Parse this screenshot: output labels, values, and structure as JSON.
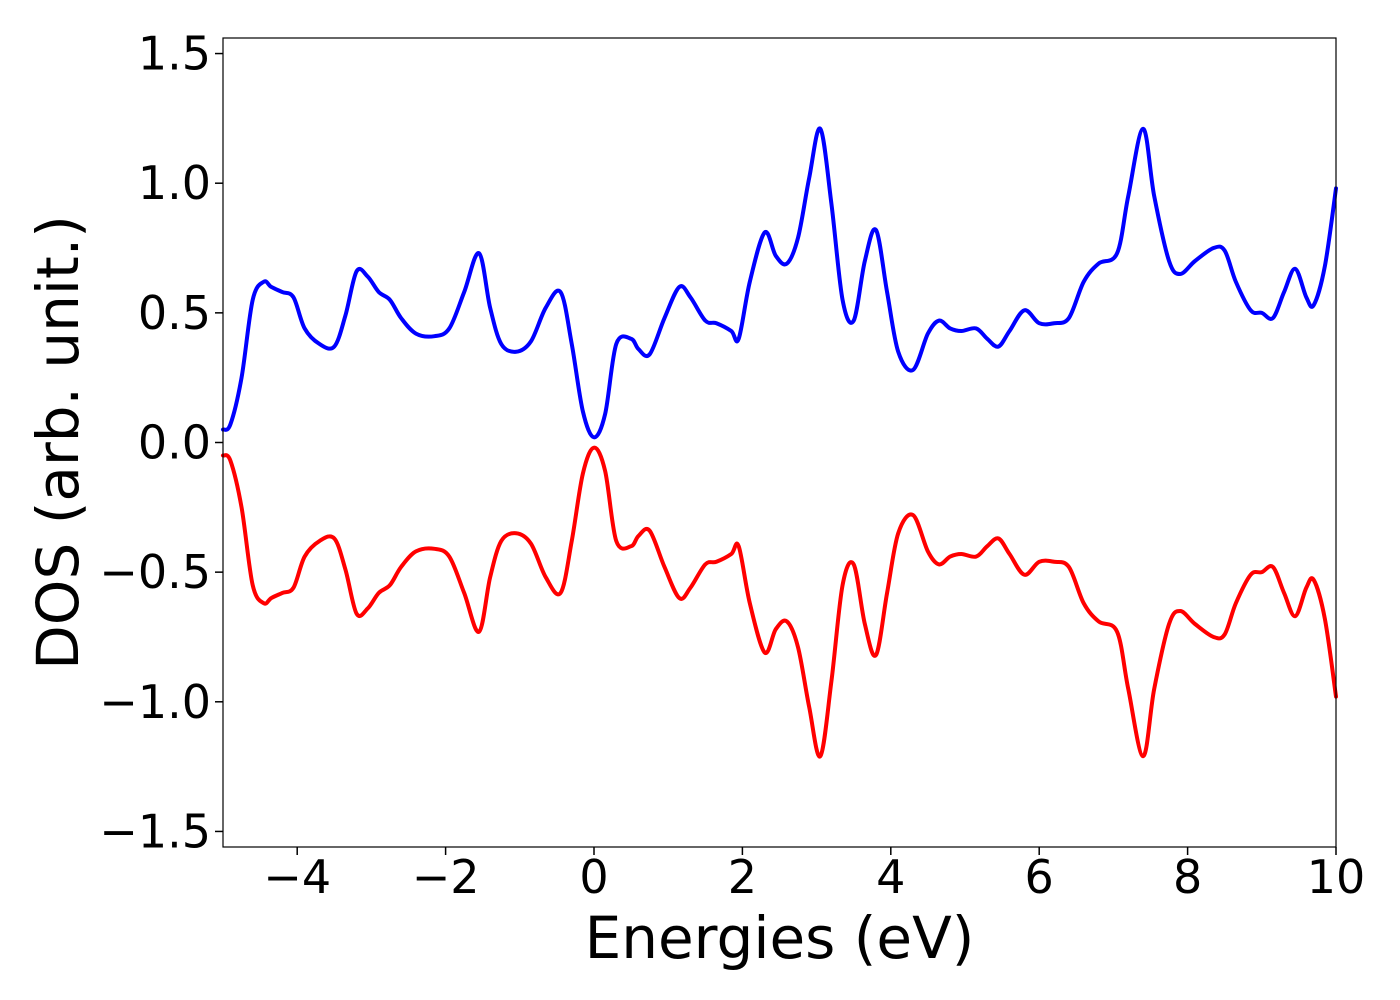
{
  "chart_data": {
    "type": "line",
    "title": "",
    "xlabel": "Energies (eV)",
    "ylabel": "DOS (arb. unit.)",
    "xlim": [
      -5,
      10
    ],
    "ylim": [
      -1.56,
      1.56
    ],
    "grid": false,
    "xticks": [
      -4,
      -2,
      0,
      2,
      4,
      6,
      8,
      10
    ],
    "xtick_labels": [
      "−4",
      "−2",
      "0",
      "2",
      "4",
      "6",
      "8",
      "10"
    ],
    "yticks": [
      1.5,
      1.0,
      0.5,
      0.0,
      -0.5,
      -1.0,
      -1.5
    ],
    "ytick_labels": [
      "1.5",
      "1.0",
      "0.5",
      "0.0",
      "−0.5",
      "−1.0",
      "−1.5"
    ],
    "series": [
      {
        "color": "#0000ff",
        "x": [
          -5.0,
          -4.9,
          -4.75,
          -4.6,
          -4.45,
          -4.35,
          -4.2,
          -4.05,
          -3.9,
          -3.7,
          -3.5,
          -3.35,
          -3.2,
          -3.05,
          -2.9,
          -2.75,
          -2.6,
          -2.4,
          -2.15,
          -1.95,
          -1.75,
          -1.55,
          -1.4,
          -1.25,
          -1.05,
          -0.85,
          -0.65,
          -0.45,
          -0.3,
          -0.15,
          0.0,
          0.15,
          0.3,
          0.5,
          0.6,
          0.75,
          0.95,
          1.15,
          1.3,
          1.5,
          1.65,
          1.85,
          1.95,
          2.1,
          2.3,
          2.45,
          2.6,
          2.75,
          2.9,
          3.05,
          3.2,
          3.35,
          3.5,
          3.65,
          3.8,
          3.95,
          4.1,
          4.3,
          4.5,
          4.65,
          4.8,
          4.95,
          5.15,
          5.3,
          5.45,
          5.6,
          5.8,
          6.0,
          6.2,
          6.4,
          6.6,
          6.8,
          7.05,
          7.2,
          7.4,
          7.55,
          7.75,
          7.9,
          8.1,
          8.35,
          8.5,
          8.65,
          8.85,
          9.0,
          9.15,
          9.3,
          9.45,
          9.6,
          9.7,
          9.85,
          10.0
        ],
        "y": [
          0.05,
          0.07,
          0.25,
          0.55,
          0.62,
          0.6,
          0.58,
          0.56,
          0.44,
          0.38,
          0.37,
          0.49,
          0.66,
          0.64,
          0.58,
          0.55,
          0.48,
          0.42,
          0.41,
          0.44,
          0.58,
          0.73,
          0.52,
          0.38,
          0.35,
          0.39,
          0.52,
          0.58,
          0.38,
          0.12,
          0.02,
          0.11,
          0.38,
          0.4,
          0.36,
          0.34,
          0.48,
          0.6,
          0.56,
          0.47,
          0.46,
          0.43,
          0.4,
          0.62,
          0.81,
          0.72,
          0.69,
          0.79,
          1.02,
          1.21,
          0.92,
          0.55,
          0.47,
          0.7,
          0.82,
          0.58,
          0.35,
          0.28,
          0.42,
          0.47,
          0.44,
          0.43,
          0.44,
          0.4,
          0.37,
          0.43,
          0.51,
          0.46,
          0.46,
          0.48,
          0.62,
          0.69,
          0.73,
          0.95,
          1.21,
          0.95,
          0.7,
          0.65,
          0.7,
          0.75,
          0.74,
          0.62,
          0.51,
          0.5,
          0.48,
          0.58,
          0.67,
          0.56,
          0.53,
          0.68,
          0.98
        ]
      },
      {
        "color": "#ff0000",
        "x": [
          -5.0,
          -4.9,
          -4.75,
          -4.6,
          -4.45,
          -4.35,
          -4.2,
          -4.05,
          -3.9,
          -3.7,
          -3.5,
          -3.35,
          -3.2,
          -3.05,
          -2.9,
          -2.75,
          -2.6,
          -2.4,
          -2.15,
          -1.95,
          -1.75,
          -1.55,
          -1.4,
          -1.25,
          -1.05,
          -0.85,
          -0.65,
          -0.45,
          -0.3,
          -0.15,
          0.0,
          0.15,
          0.3,
          0.5,
          0.6,
          0.75,
          0.95,
          1.15,
          1.3,
          1.5,
          1.65,
          1.85,
          1.95,
          2.1,
          2.3,
          2.45,
          2.6,
          2.75,
          2.9,
          3.05,
          3.2,
          3.35,
          3.5,
          3.65,
          3.8,
          3.95,
          4.1,
          4.3,
          4.5,
          4.65,
          4.8,
          4.95,
          5.15,
          5.3,
          5.45,
          5.6,
          5.8,
          6.0,
          6.2,
          6.4,
          6.6,
          6.8,
          7.05,
          7.2,
          7.4,
          7.55,
          7.75,
          7.9,
          8.1,
          8.35,
          8.5,
          8.65,
          8.85,
          9.0,
          9.15,
          9.3,
          9.45,
          9.6,
          9.7,
          9.85,
          10.0
        ],
        "y": [
          -0.05,
          -0.07,
          -0.25,
          -0.55,
          -0.62,
          -0.6,
          -0.58,
          -0.56,
          -0.44,
          -0.38,
          -0.37,
          -0.49,
          -0.66,
          -0.64,
          -0.58,
          -0.55,
          -0.48,
          -0.42,
          -0.41,
          -0.44,
          -0.58,
          -0.73,
          -0.52,
          -0.38,
          -0.35,
          -0.39,
          -0.52,
          -0.58,
          -0.38,
          -0.12,
          -0.02,
          -0.11,
          -0.38,
          -0.4,
          -0.36,
          -0.34,
          -0.48,
          -0.6,
          -0.56,
          -0.47,
          -0.46,
          -0.43,
          -0.4,
          -0.62,
          -0.81,
          -0.72,
          -0.69,
          -0.79,
          -1.02,
          -1.21,
          -0.92,
          -0.55,
          -0.47,
          -0.7,
          -0.82,
          -0.58,
          -0.35,
          -0.28,
          -0.42,
          -0.47,
          -0.44,
          -0.43,
          -0.44,
          -0.4,
          -0.37,
          -0.43,
          -0.51,
          -0.46,
          -0.46,
          -0.48,
          -0.62,
          -0.69,
          -0.73,
          -0.95,
          -1.21,
          -0.95,
          -0.7,
          -0.65,
          -0.7,
          -0.75,
          -0.74,
          -0.62,
          -0.51,
          -0.5,
          -0.48,
          -0.58,
          -0.67,
          -0.56,
          -0.53,
          -0.68,
          -0.98
        ]
      }
    ]
  }
}
